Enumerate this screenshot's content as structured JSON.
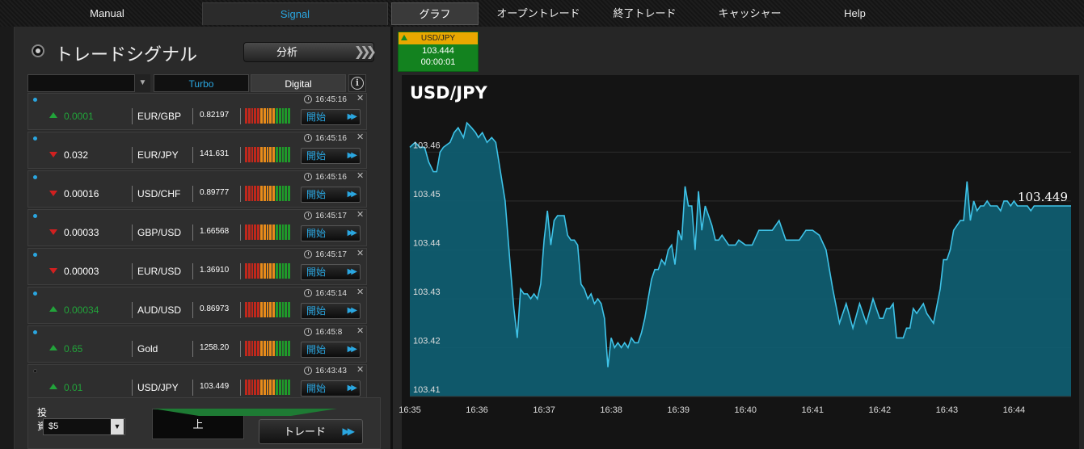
{
  "nav": {
    "manual": "Manual",
    "signal": "Signal",
    "graph": "グラフ",
    "open_trades": "オープントレード",
    "closed_trades": "終了トレード",
    "cashier": "キャッシャー",
    "help": "Help"
  },
  "panel": {
    "title": "トレードシグナル",
    "analyze_label": "分析",
    "filter_select_value": "",
    "tab_turbo": "Turbo",
    "tab_digital": "Digital",
    "info_glyph": "i",
    "start_label": "開始",
    "signals": [
      {
        "direction": "up",
        "change": "0.0001",
        "pair": "EUR/GBP",
        "price": "0.82197",
        "time": "16:45:16",
        "dot": "blue"
      },
      {
        "direction": "down",
        "change": "0.032",
        "pair": "EUR/JPY",
        "price": "141.631",
        "time": "16:45:16",
        "dot": "blue"
      },
      {
        "direction": "down",
        "change": "0.00016",
        "pair": "USD/CHF",
        "price": "0.89777",
        "time": "16:45:16",
        "dot": "blue"
      },
      {
        "direction": "down",
        "change": "0.00033",
        "pair": "GBP/USD",
        "price": "1.66568",
        "time": "16:45:17",
        "dot": "blue"
      },
      {
        "direction": "down",
        "change": "0.00003",
        "pair": "EUR/USD",
        "price": "1.36910",
        "time": "16:45:17",
        "dot": "blue"
      },
      {
        "direction": "up",
        "change": "0.00034",
        "pair": "AUD/USD",
        "price": "0.86973",
        "time": "16:45:14",
        "dot": "blue"
      },
      {
        "direction": "up",
        "change": "0.65",
        "pair": "Gold",
        "price": "1258.20",
        "time": "16:45:8",
        "dot": "blue"
      },
      {
        "direction": "up",
        "change": "0.01",
        "pair": "USD/JPY",
        "price": "103.449",
        "time": "16:43:43",
        "dot": "dark"
      }
    ],
    "invest_label": "投資",
    "invest_value": "$5",
    "up_label": "上",
    "trade_label": "トレード"
  },
  "mini_card": {
    "pair": "USD/JPY",
    "price": "103.444",
    "timer": "00:00:01"
  },
  "colors": {
    "accent": "#2aa6e0",
    "up": "#22a33a",
    "down": "#d12020",
    "chart_fill": "#0e5f73",
    "chart_line": "#3fc3e8",
    "card_green": "#13821f",
    "card_head": "#e8a800"
  },
  "chart_data": {
    "type": "area",
    "title": "USD/JPY",
    "last_value_label": "103.449",
    "xlabel": "",
    "ylabel": "",
    "x_ticks": [
      "16:35",
      "16:36",
      "16:37",
      "16:38",
      "16:39",
      "16:40",
      "16:41",
      "16:42",
      "16:43",
      "16:44"
    ],
    "y_ticks": [
      "103.41",
      "103.42",
      "103.43",
      "103.44",
      "103.45",
      "103.46"
    ],
    "ylim": [
      103.41,
      103.468
    ],
    "xlim": [
      0,
      9.85
    ],
    "grid": true,
    "series": [
      {
        "x": [
          0,
          0.08,
          0.15,
          0.22,
          0.28,
          0.35,
          0.4,
          0.45,
          0.5,
          0.6,
          0.66,
          0.72,
          0.8,
          0.85,
          0.92,
          0.98,
          1.02,
          1.08,
          1.15,
          1.22,
          1.28,
          1.35,
          1.42,
          1.5,
          1.55,
          1.6,
          1.65,
          1.7,
          1.75,
          1.8,
          1.85,
          1.9,
          1.95,
          2.0,
          2.05,
          2.1,
          2.15,
          2.2,
          2.25,
          2.3,
          2.35,
          2.4,
          2.45,
          2.5,
          2.55,
          2.6,
          2.65,
          2.7,
          2.75,
          2.8,
          2.85,
          2.9,
          2.95,
          3.0,
          3.05,
          3.1,
          3.15,
          3.2,
          3.25,
          3.3,
          3.35,
          3.4,
          3.45,
          3.5,
          3.55,
          3.6,
          3.65,
          3.7,
          3.75,
          3.8,
          3.85,
          3.9,
          3.95,
          4.0,
          4.05,
          4.1,
          4.15,
          4.2,
          4.25,
          4.3,
          4.35,
          4.4,
          4.45,
          4.5,
          4.55,
          4.6,
          4.65,
          4.7,
          4.75,
          4.8,
          4.85,
          4.9,
          5.0,
          5.1,
          5.2,
          5.3,
          5.4,
          5.5,
          5.6,
          5.7,
          5.8,
          5.9,
          6.0,
          6.1,
          6.2,
          6.3,
          6.4,
          6.5,
          6.6,
          6.7,
          6.8,
          6.9,
          7.0,
          7.05,
          7.1,
          7.15,
          7.2,
          7.25,
          7.3,
          7.35,
          7.4,
          7.45,
          7.5,
          7.55,
          7.6,
          7.65,
          7.7,
          7.8,
          7.9,
          7.95,
          8.0,
          8.05,
          8.1,
          8.15,
          8.2,
          8.25,
          8.3,
          8.35,
          8.4,
          8.45,
          8.5,
          8.55,
          8.6,
          8.65,
          8.7,
          8.75,
          8.8,
          8.85,
          8.9,
          8.95,
          9.0,
          9.05,
          9.1,
          9.15,
          9.2,
          9.25,
          9.3,
          9.35,
          9.4,
          9.45,
          9.5,
          9.55,
          9.6,
          9.65,
          9.7,
          9.75,
          9.8,
          9.85
        ],
        "y": [
          103.461,
          103.462,
          103.461,
          103.461,
          103.458,
          103.456,
          103.456,
          103.46,
          103.461,
          103.462,
          103.464,
          103.465,
          103.463,
          103.466,
          103.465,
          103.464,
          103.463,
          103.464,
          103.462,
          103.463,
          103.462,
          103.456,
          103.45,
          103.436,
          103.428,
          103.422,
          103.432,
          103.431,
          103.431,
          103.43,
          103.431,
          103.43,
          103.433,
          103.442,
          103.448,
          103.441,
          103.446,
          103.447,
          103.447,
          103.447,
          103.443,
          103.442,
          103.442,
          103.441,
          103.433,
          103.432,
          103.43,
          103.431,
          103.429,
          103.43,
          103.429,
          103.426,
          103.416,
          103.422,
          103.42,
          103.421,
          103.42,
          103.421,
          103.42,
          103.422,
          103.421,
          103.421,
          103.423,
          103.426,
          103.43,
          103.434,
          103.436,
          103.436,
          103.438,
          103.437,
          103.44,
          103.441,
          103.437,
          103.444,
          103.442,
          103.453,
          103.449,
          103.449,
          103.44,
          103.452,
          103.444,
          103.449,
          103.447,
          103.445,
          103.442,
          103.442,
          103.443,
          103.442,
          103.441,
          103.441,
          103.441,
          103.442,
          103.441,
          103.441,
          103.444,
          103.444,
          103.444,
          103.446,
          103.442,
          103.442,
          103.442,
          103.444,
          103.444,
          103.443,
          103.44,
          103.432,
          103.425,
          103.429,
          103.424,
          103.429,
          103.425,
          103.43,
          103.426,
          103.426,
          103.428,
          103.428,
          103.429,
          103.422,
          103.422,
          103.422,
          103.424,
          103.424,
          103.428,
          103.427,
          103.428,
          103.429,
          103.427,
          103.425,
          103.432,
          103.438,
          103.438,
          103.44,
          103.444,
          103.445,
          103.446,
          103.446,
          103.454,
          103.446,
          103.45,
          103.448,
          103.449,
          103.449,
          103.45,
          103.449,
          103.449,
          103.449,
          103.448,
          103.45,
          103.45,
          103.449,
          103.45,
          103.449,
          103.449,
          103.449,
          103.449,
          103.448,
          103.449,
          103.449,
          103.449,
          103.449,
          103.449,
          103.449,
          103.449,
          103.449,
          103.449,
          103.449,
          103.449,
          103.449
        ]
      }
    ]
  }
}
